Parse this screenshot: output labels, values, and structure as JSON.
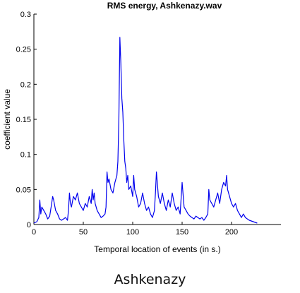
{
  "caption": "Ashkenazy",
  "chart_data": {
    "type": "line",
    "title": "RMS energy, Ashkenazy.wav",
    "xlabel": "Temporal location of events (in s.)",
    "ylabel": "coefficient value",
    "xlim": [
      0,
      250
    ],
    "ylim": [
      0,
      0.3
    ],
    "xticks": [
      0,
      50,
      100,
      150,
      200
    ],
    "yticks": [
      0,
      0.05,
      0.1,
      0.15,
      0.2,
      0.25,
      0.3
    ],
    "xtick_labels": [
      "0",
      "50",
      "100",
      "150",
      "200"
    ],
    "ytick_labels": [
      "0",
      "0.05",
      "0.1",
      "0.15",
      "0.2",
      "0.25",
      "0.3"
    ],
    "grid": false,
    "line_color": "#0000ee",
    "series": [
      {
        "x": [
          0,
          3,
          5,
          6,
          7,
          8,
          10,
          12,
          14,
          16,
          18,
          19,
          20,
          22,
          24,
          26,
          28,
          30,
          32,
          34,
          35,
          36,
          37,
          38,
          40,
          42,
          44,
          46,
          48,
          50,
          52,
          54,
          56,
          58,
          59,
          60,
          61,
          62,
          64,
          66,
          68,
          70,
          72,
          73,
          74,
          75,
          76,
          78,
          80,
          82,
          84,
          85,
          86,
          87,
          88,
          89,
          90,
          91,
          92,
          93,
          94,
          95,
          96,
          98,
          100,
          101,
          102,
          104,
          106,
          108,
          110,
          112,
          114,
          116,
          118,
          120,
          122,
          123,
          124,
          126,
          128,
          130,
          132,
          134,
          136,
          138,
          140,
          142,
          144,
          146,
          148,
          150,
          152,
          154,
          156,
          158,
          160,
          162,
          164,
          166,
          168,
          170,
          172,
          174,
          176,
          177,
          178,
          180,
          182,
          184,
          186,
          188,
          190,
          192,
          194,
          195,
          196,
          198,
          200,
          202,
          204,
          206,
          208,
          210,
          212,
          214,
          216,
          218,
          220,
          222,
          224,
          226
        ],
        "y": [
          0.002,
          0.004,
          0.01,
          0.035,
          0.015,
          0.025,
          0.02,
          0.015,
          0.008,
          0.012,
          0.03,
          0.04,
          0.035,
          0.02,
          0.015,
          0.008,
          0.006,
          0.008,
          0.01,
          0.006,
          0.02,
          0.045,
          0.03,
          0.025,
          0.04,
          0.035,
          0.045,
          0.03,
          0.025,
          0.02,
          0.03,
          0.025,
          0.04,
          0.03,
          0.05,
          0.035,
          0.045,
          0.03,
          0.02,
          0.015,
          0.01,
          0.012,
          0.015,
          0.025,
          0.075,
          0.06,
          0.065,
          0.05,
          0.045,
          0.06,
          0.07,
          0.09,
          0.15,
          0.267,
          0.23,
          0.18,
          0.16,
          0.12,
          0.09,
          0.08,
          0.06,
          0.07,
          0.05,
          0.055,
          0.04,
          0.07,
          0.05,
          0.04,
          0.025,
          0.03,
          0.045,
          0.03,
          0.02,
          0.025,
          0.015,
          0.01,
          0.02,
          0.045,
          0.075,
          0.04,
          0.03,
          0.045,
          0.03,
          0.02,
          0.035,
          0.025,
          0.045,
          0.03,
          0.02,
          0.025,
          0.015,
          0.06,
          0.025,
          0.02,
          0.015,
          0.012,
          0.01,
          0.008,
          0.012,
          0.01,
          0.008,
          0.01,
          0.006,
          0.01,
          0.015,
          0.05,
          0.035,
          0.03,
          0.025,
          0.035,
          0.045,
          0.03,
          0.05,
          0.06,
          0.055,
          0.07,
          0.05,
          0.04,
          0.03,
          0.025,
          0.03,
          0.02,
          0.015,
          0.01,
          0.015,
          0.01,
          0.008,
          0.006,
          0.005,
          0.004,
          0.003,
          0.002
        ]
      }
    ]
  }
}
